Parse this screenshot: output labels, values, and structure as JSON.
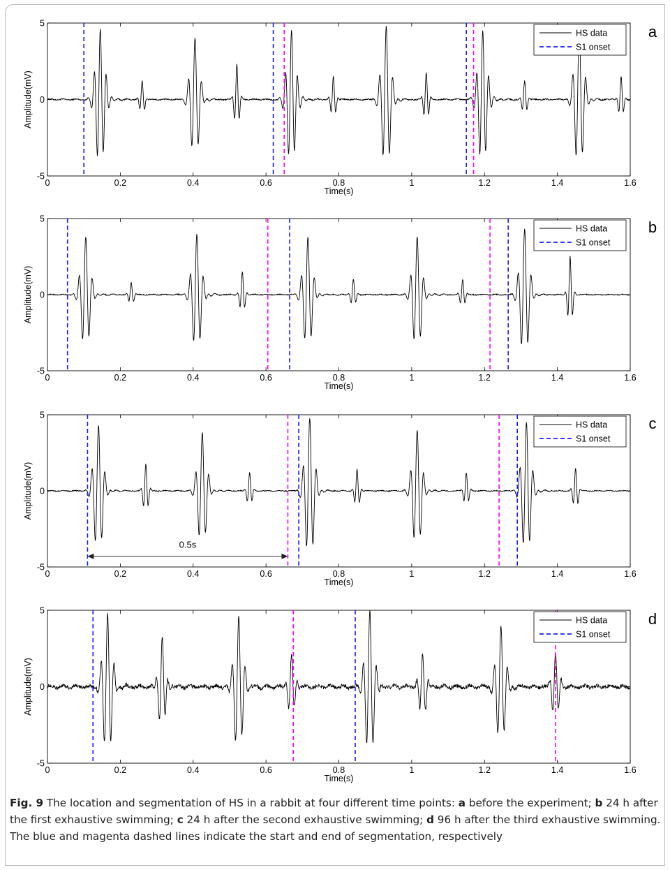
{
  "chart_data": [
    {
      "type": "line",
      "panel_letter": "a",
      "xlabel": "Time(s)",
      "ylabel": "Amplitude(mV)",
      "xlim": [
        0,
        1.6
      ],
      "ylim": [
        -5,
        5
      ],
      "x_ticks": [
        "0",
        "0.2",
        "0.4",
        "0.6",
        "0.8",
        "1",
        "1.2",
        "1.4",
        "1.6"
      ],
      "y_ticks": [
        "5",
        "0",
        "-5"
      ],
      "legend": {
        "position": "top-right",
        "entries": [
          {
            "label": "HS data",
            "color": "#000000",
            "style": "solid"
          },
          {
            "label": "S1 onset",
            "color": "#1a1aff",
            "style": "dashed"
          }
        ]
      },
      "series": [
        {
          "name": "HS data",
          "kind": "signal",
          "color": "#000000",
          "noise": 0.04,
          "bursts": [
            {
              "t": 0.145,
              "amp": 4.6,
              "freq": 60,
              "width": 0.012
            },
            {
              "t": 0.26,
              "amp": 1.2,
              "freq": 70,
              "width": 0.006
            },
            {
              "t": 0.405,
              "amp": 4.0,
              "freq": 55,
              "width": 0.012
            },
            {
              "t": 0.52,
              "amp": 2.3,
              "freq": 70,
              "width": 0.006
            },
            {
              "t": 0.67,
              "amp": 4.5,
              "freq": 60,
              "width": 0.012
            },
            {
              "t": 0.785,
              "amp": 1.5,
              "freq": 70,
              "width": 0.006
            },
            {
              "t": 0.93,
              "amp": 4.8,
              "freq": 55,
              "width": 0.012
            },
            {
              "t": 1.04,
              "amp": 1.8,
              "freq": 70,
              "width": 0.006
            },
            {
              "t": 1.195,
              "amp": 4.5,
              "freq": 60,
              "width": 0.012
            },
            {
              "t": 1.31,
              "amp": 1.2,
              "freq": 70,
              "width": 0.006
            },
            {
              "t": 1.46,
              "amp": 4.8,
              "freq": 55,
              "width": 0.012
            },
            {
              "t": 1.575,
              "amp": 1.5,
              "freq": 70,
              "width": 0.006
            }
          ]
        },
        {
          "name": "S1 onset",
          "kind": "vlines",
          "color": "#1a1aff",
          "x": [
            0.1,
            0.62,
            1.15
          ]
        },
        {
          "kind": "vlines",
          "color": "#ff00ff",
          "x": [
            0.65,
            1.17
          ]
        }
      ]
    },
    {
      "type": "line",
      "panel_letter": "b",
      "xlabel": "Time(s)",
      "ylabel": "Amplitude(mV)",
      "xlim": [
        0,
        1.6
      ],
      "ylim": [
        -5,
        5
      ],
      "x_ticks": [
        "0",
        "0.2",
        "0.4",
        "0.6",
        "0.8",
        "1",
        "1.2",
        "1.4",
        "1.6"
      ],
      "y_ticks": [
        "5",
        "0",
        "-5"
      ],
      "legend": {
        "position": "top-right",
        "entries": [
          {
            "label": "HS data",
            "color": "#000000",
            "style": "solid"
          },
          {
            "label": "S1 onset",
            "color": "#1a1aff",
            "style": "dashed"
          }
        ]
      },
      "series": [
        {
          "name": "HS data",
          "kind": "signal",
          "color": "#000000",
          "noise": 0.03,
          "bursts": [
            {
              "t": 0.105,
              "amp": 3.8,
              "freq": 55,
              "width": 0.012
            },
            {
              "t": 0.23,
              "amp": 0.8,
              "freq": 70,
              "width": 0.006
            },
            {
              "t": 0.41,
              "amp": 4.0,
              "freq": 55,
              "width": 0.012
            },
            {
              "t": 0.535,
              "amp": 1.5,
              "freq": 70,
              "width": 0.006
            },
            {
              "t": 0.715,
              "amp": 3.8,
              "freq": 55,
              "width": 0.012
            },
            {
              "t": 0.84,
              "amp": 1.0,
              "freq": 70,
              "width": 0.006
            },
            {
              "t": 1.015,
              "amp": 3.8,
              "freq": 55,
              "width": 0.012
            },
            {
              "t": 1.14,
              "amp": 1.0,
              "freq": 70,
              "width": 0.006
            },
            {
              "t": 1.31,
              "amp": 4.3,
              "freq": 55,
              "width": 0.012
            },
            {
              "t": 1.435,
              "amp": 2.5,
              "freq": 70,
              "width": 0.006
            }
          ]
        },
        {
          "name": "S1 onset",
          "kind": "vlines",
          "color": "#1a1aff",
          "x": [
            0.055,
            0.665,
            1.265
          ]
        },
        {
          "kind": "vlines",
          "color": "#ff00ff",
          "x": [
            0.605,
            1.215
          ]
        }
      ]
    },
    {
      "type": "line",
      "panel_letter": "c",
      "xlabel": "Time(s)",
      "ylabel": "Amplitude(mV)",
      "xlim": [
        0,
        1.6
      ],
      "ylim": [
        -5,
        5
      ],
      "x_ticks": [
        "0",
        "0.2",
        "0.4",
        "0.6",
        "0.8",
        "1",
        "1.2",
        "1.4",
        "1.6"
      ],
      "y_ticks": [
        "5",
        "0",
        "-5"
      ],
      "legend": {
        "position": "top-right",
        "entries": [
          {
            "label": "HS data",
            "color": "#000000",
            "style": "solid"
          },
          {
            "label": "S1 onset",
            "color": "#1a1aff",
            "style": "dashed"
          }
        ]
      },
      "annotation": {
        "text": "0.5s",
        "x_from": 0.11,
        "x_to": 0.66,
        "y": -4.3
      },
      "series": [
        {
          "name": "HS data",
          "kind": "signal",
          "color": "#000000",
          "noise": 0.03,
          "bursts": [
            {
              "t": 0.14,
              "amp": 4.3,
              "freq": 55,
              "width": 0.012
            },
            {
              "t": 0.27,
              "amp": 1.8,
              "freq": 70,
              "width": 0.006
            },
            {
              "t": 0.425,
              "amp": 3.8,
              "freq": 55,
              "width": 0.012
            },
            {
              "t": 0.555,
              "amp": 1.2,
              "freq": 70,
              "width": 0.006
            },
            {
              "t": 0.72,
              "amp": 4.8,
              "freq": 55,
              "width": 0.012
            },
            {
              "t": 0.85,
              "amp": 1.4,
              "freq": 70,
              "width": 0.006
            },
            {
              "t": 1.015,
              "amp": 4.0,
              "freq": 55,
              "width": 0.012
            },
            {
              "t": 1.15,
              "amp": 1.2,
              "freq": 70,
              "width": 0.006
            },
            {
              "t": 1.315,
              "amp": 4.5,
              "freq": 55,
              "width": 0.012
            },
            {
              "t": 1.45,
              "amp": 1.5,
              "freq": 70,
              "width": 0.006
            }
          ]
        },
        {
          "name": "S1 onset",
          "kind": "vlines",
          "color": "#1a1aff",
          "x": [
            0.11,
            0.69,
            1.29
          ]
        },
        {
          "kind": "vlines",
          "color": "#ff00ff",
          "x": [
            0.66,
            1.24
          ]
        }
      ]
    },
    {
      "type": "line",
      "panel_letter": "d",
      "xlabel": "Time(s)",
      "ylabel": "Amplitude(mV)",
      "xlim": [
        0,
        1.6
      ],
      "ylim": [
        -5,
        5
      ],
      "x_ticks": [
        "0",
        "0.2",
        "0.4",
        "0.6",
        "0.8",
        "1",
        "1.2",
        "1.4",
        "1.6"
      ],
      "y_ticks": [
        "5",
        "0",
        "-5"
      ],
      "legend": {
        "position": "top-right",
        "entries": [
          {
            "label": "HS data",
            "color": "#000000",
            "style": "solid"
          },
          {
            "label": "S1 onset",
            "color": "#1a1aff",
            "style": "dashed"
          }
        ]
      },
      "series": [
        {
          "name": "HS data",
          "kind": "signal",
          "color": "#000000",
          "noise": 0.12,
          "bursts": [
            {
              "t": 0.165,
              "amp": 4.8,
              "freq": 55,
              "width": 0.012
            },
            {
              "t": 0.315,
              "amp": 3.2,
              "freq": 60,
              "width": 0.009
            },
            {
              "t": 0.525,
              "amp": 4.5,
              "freq": 55,
              "width": 0.012
            },
            {
              "t": 0.67,
              "amp": 2.0,
              "freq": 60,
              "width": 0.009
            },
            {
              "t": 0.885,
              "amp": 4.9,
              "freq": 55,
              "width": 0.012
            },
            {
              "t": 1.03,
              "amp": 2.2,
              "freq": 60,
              "width": 0.009
            },
            {
              "t": 1.245,
              "amp": 4.0,
              "freq": 55,
              "width": 0.012
            },
            {
              "t": 1.395,
              "amp": 2.2,
              "freq": 60,
              "width": 0.009
            }
          ]
        },
        {
          "name": "S1 onset",
          "kind": "vlines",
          "color": "#1a1aff",
          "x": [
            0.125,
            0.845
          ]
        },
        {
          "kind": "vlines",
          "color": "#ff00ff",
          "x": [
            0.675,
            1.395
          ]
        }
      ]
    }
  ],
  "caption": {
    "fig_label": "Fig. 9",
    "parts": [
      {
        "t": "  The location and segmentation of HS in a rabbit at four different time points: "
      },
      {
        "b": "a"
      },
      {
        "t": " before the experiment; "
      },
      {
        "b": "b"
      },
      {
        "t": " 24 h after the first exhaustive swimming; "
      },
      {
        "b": "c"
      },
      {
        "t": " 24 h after the second exhaustive swimming; "
      },
      {
        "b": "d"
      },
      {
        "t": " 96 h after the third exhaustive swimming. The blue and magenta dashed lines indicate the start and end of segmentation, respectively"
      }
    ]
  }
}
